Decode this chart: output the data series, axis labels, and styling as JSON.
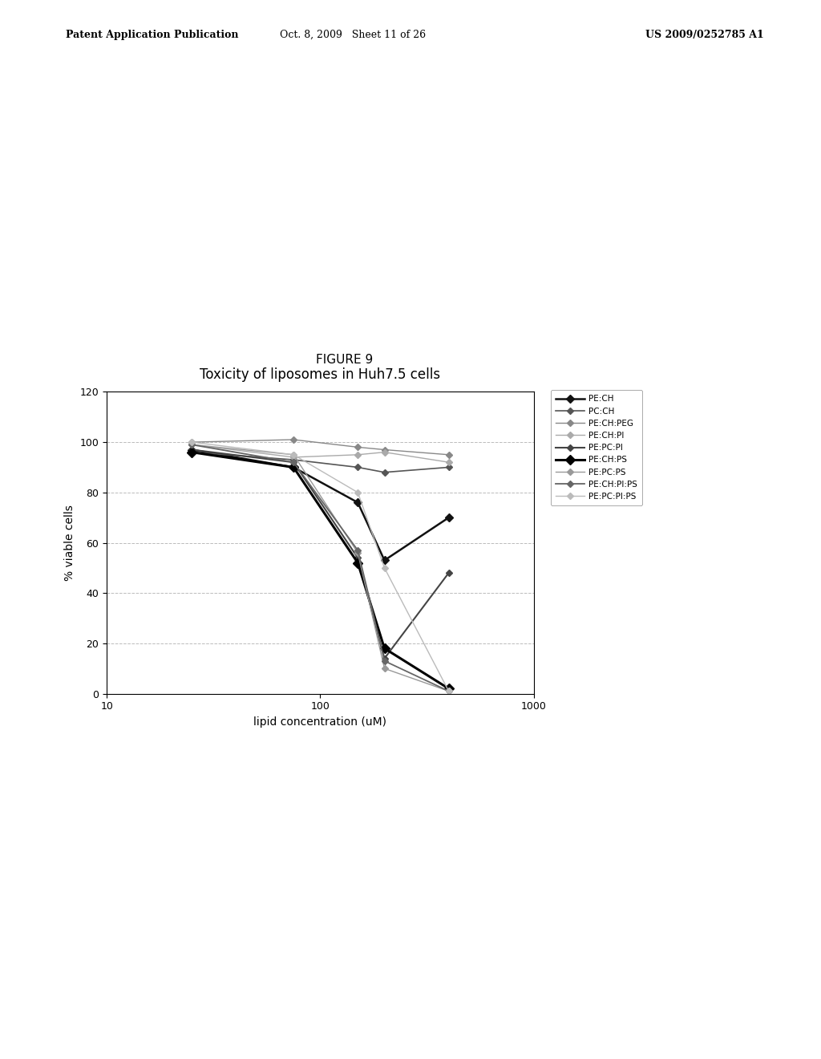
{
  "title": "Toxicity of liposomes in Huh7.5 cells",
  "figure_label": "FIGURE 9",
  "xlabel": "lipid concentration (uM)",
  "ylabel": "% viable cells",
  "xlim": [
    10,
    1000
  ],
  "ylim": [
    0,
    120
  ],
  "yticks": [
    0,
    20,
    40,
    60,
    80,
    100,
    120
  ],
  "header_left": "Patent Application Publication",
  "header_mid": "Oct. 8, 2009   Sheet 11 of 26",
  "header_right": "US 2009/0252785 A1",
  "series": [
    {
      "label": "PE:CH",
      "color": "#111111",
      "linewidth": 1.8,
      "linestyle": "-",
      "marker": "D",
      "markersize": 5,
      "x": [
        25,
        75,
        150,
        200,
        400
      ],
      "y": [
        97,
        90,
        76,
        53,
        70
      ]
    },
    {
      "label": "PC:CH",
      "color": "#555555",
      "linewidth": 1.2,
      "linestyle": "-",
      "marker": "D",
      "markersize": 4,
      "x": [
        25,
        75,
        150,
        200,
        400
      ],
      "y": [
        96,
        93,
        90,
        88,
        90
      ]
    },
    {
      "label": "PE:CH:PEG",
      "color": "#888888",
      "linewidth": 1.0,
      "linestyle": "-",
      "marker": "D",
      "markersize": 4,
      "x": [
        25,
        75,
        150,
        200,
        400
      ],
      "y": [
        100,
        101,
        98,
        97,
        95
      ]
    },
    {
      "label": "PE:CH:PI",
      "color": "#aaaaaa",
      "linewidth": 1.0,
      "linestyle": "-",
      "marker": "D",
      "markersize": 4,
      "x": [
        25,
        75,
        150,
        200,
        400
      ],
      "y": [
        99,
        94,
        95,
        96,
        92
      ]
    },
    {
      "label": "PE:PC:PI",
      "color": "#444444",
      "linewidth": 1.5,
      "linestyle": "-",
      "marker": "D",
      "markersize": 4,
      "x": [
        25,
        75,
        150,
        200,
        400
      ],
      "y": [
        97,
        92,
        54,
        14,
        48
      ]
    },
    {
      "label": "PE:CH:PS",
      "color": "#000000",
      "linewidth": 2.2,
      "linestyle": "-",
      "marker": "D",
      "markersize": 6,
      "x": [
        25,
        75,
        150,
        200,
        400
      ],
      "y": [
        96,
        90,
        52,
        18,
        2
      ]
    },
    {
      "label": "PE:PC:PS",
      "color": "#999999",
      "linewidth": 1.0,
      "linestyle": "-",
      "marker": "D",
      "markersize": 4,
      "x": [
        25,
        75,
        150,
        200,
        400
      ],
      "y": [
        99,
        95,
        56,
        10,
        1
      ]
    },
    {
      "label": "PE:CH:PI:PS",
      "color": "#666666",
      "linewidth": 1.3,
      "linestyle": "-",
      "marker": "D",
      "markersize": 4,
      "x": [
        25,
        75,
        150,
        200,
        400
      ],
      "y": [
        99,
        92,
        57,
        13,
        1
      ]
    },
    {
      "label": "PE:PC:PI:PS",
      "color": "#bbbbbb",
      "linewidth": 1.0,
      "linestyle": "-",
      "marker": "D",
      "markersize": 4,
      "x": [
        25,
        75,
        150,
        200,
        400
      ],
      "y": [
        100,
        95,
        80,
        50,
        1
      ]
    }
  ]
}
